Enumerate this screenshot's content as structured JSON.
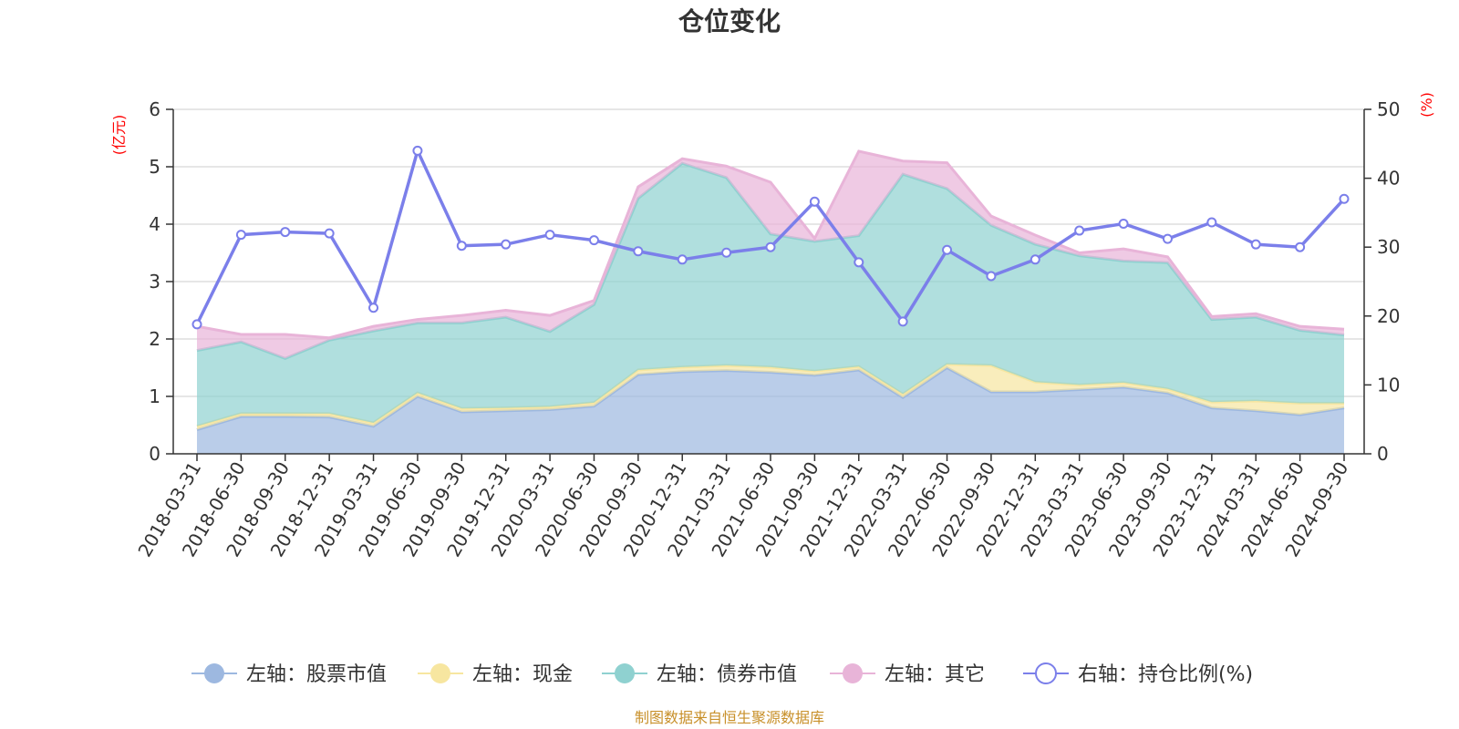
{
  "chart_data": {
    "type": "area",
    "title": "仓位变化",
    "left_axis_unit": "(亿元)",
    "right_axis_unit": "(%)",
    "left_ylim": [
      0,
      6
    ],
    "left_ticks": [
      0,
      1,
      2,
      3,
      4,
      5,
      6
    ],
    "right_ylim": [
      0,
      50
    ],
    "right_ticks": [
      0,
      10,
      20,
      30,
      40,
      50
    ],
    "categories": [
      "2018-03-31",
      "2018-06-30",
      "2018-09-30",
      "2018-12-31",
      "2019-03-31",
      "2019-06-30",
      "2019-09-30",
      "2019-12-31",
      "2020-03-31",
      "2020-06-30",
      "2020-09-30",
      "2020-12-31",
      "2021-03-31",
      "2021-06-30",
      "2021-09-30",
      "2021-12-31",
      "2022-03-31",
      "2022-06-30",
      "2022-09-30",
      "2022-12-31",
      "2023-03-31",
      "2023-06-30",
      "2023-09-30",
      "2023-12-31",
      "2024-03-31",
      "2024-06-30",
      "2024-09-30"
    ],
    "series": [
      {
        "name": "左轴：股票市值",
        "axis": "left",
        "kind": "stacked-area",
        "color": "#9db8e0",
        "values": [
          0.42,
          0.65,
          0.65,
          0.64,
          0.48,
          1.0,
          0.73,
          0.75,
          0.77,
          0.83,
          1.38,
          1.43,
          1.45,
          1.42,
          1.37,
          1.46,
          0.98,
          1.5,
          1.08,
          1.08,
          1.12,
          1.16,
          1.06,
          0.8,
          0.75,
          0.68,
          0.8
        ]
      },
      {
        "name": "左轴：现金",
        "axis": "left",
        "kind": "stacked-area",
        "color": "#f7e6a0",
        "values": [
          0.06,
          0.05,
          0.05,
          0.06,
          0.06,
          0.06,
          0.06,
          0.05,
          0.05,
          0.06,
          0.08,
          0.08,
          0.09,
          0.09,
          0.07,
          0.06,
          0.06,
          0.06,
          0.46,
          0.17,
          0.08,
          0.08,
          0.07,
          0.1,
          0.17,
          0.2,
          0.08
        ]
      },
      {
        "name": "左轴：债券市值",
        "axis": "left",
        "kind": "stacked-area",
        "color": "#8fd1d0",
        "values": [
          1.32,
          1.25,
          0.96,
          1.28,
          1.6,
          1.22,
          1.49,
          1.58,
          1.31,
          1.71,
          2.99,
          3.55,
          3.27,
          2.32,
          2.26,
          2.28,
          3.83,
          3.06,
          2.44,
          2.4,
          2.25,
          2.12,
          2.2,
          1.44,
          1.46,
          1.27,
          1.19
        ]
      },
      {
        "name": "左轴：其它",
        "axis": "left",
        "kind": "stacked-area",
        "color": "#e8b4d8",
        "values": [
          0.42,
          0.13,
          0.42,
          0.04,
          0.08,
          0.06,
          0.13,
          0.12,
          0.28,
          0.07,
          0.2,
          0.08,
          0.2,
          0.9,
          0.05,
          1.47,
          0.23,
          0.45,
          0.16,
          0.16,
          0.05,
          0.21,
          0.1,
          0.05,
          0.06,
          0.07,
          0.1
        ]
      },
      {
        "name": "右轴：持仓比例(%)",
        "axis": "right",
        "kind": "line",
        "color": "#7b7fea",
        "values": [
          18.8,
          31.8,
          32.2,
          32.0,
          21.2,
          44.0,
          30.2,
          30.4,
          31.8,
          31.0,
          29.4,
          28.2,
          29.2,
          30.0,
          36.6,
          27.8,
          19.2,
          29.6,
          25.8,
          28.2,
          32.4,
          33.4,
          31.2,
          33.6,
          30.4,
          30.0,
          37.0
        ]
      }
    ],
    "legend_position": "bottom",
    "grid": true
  },
  "footer": {
    "source": "制图数据来自恒生聚源数据库"
  }
}
